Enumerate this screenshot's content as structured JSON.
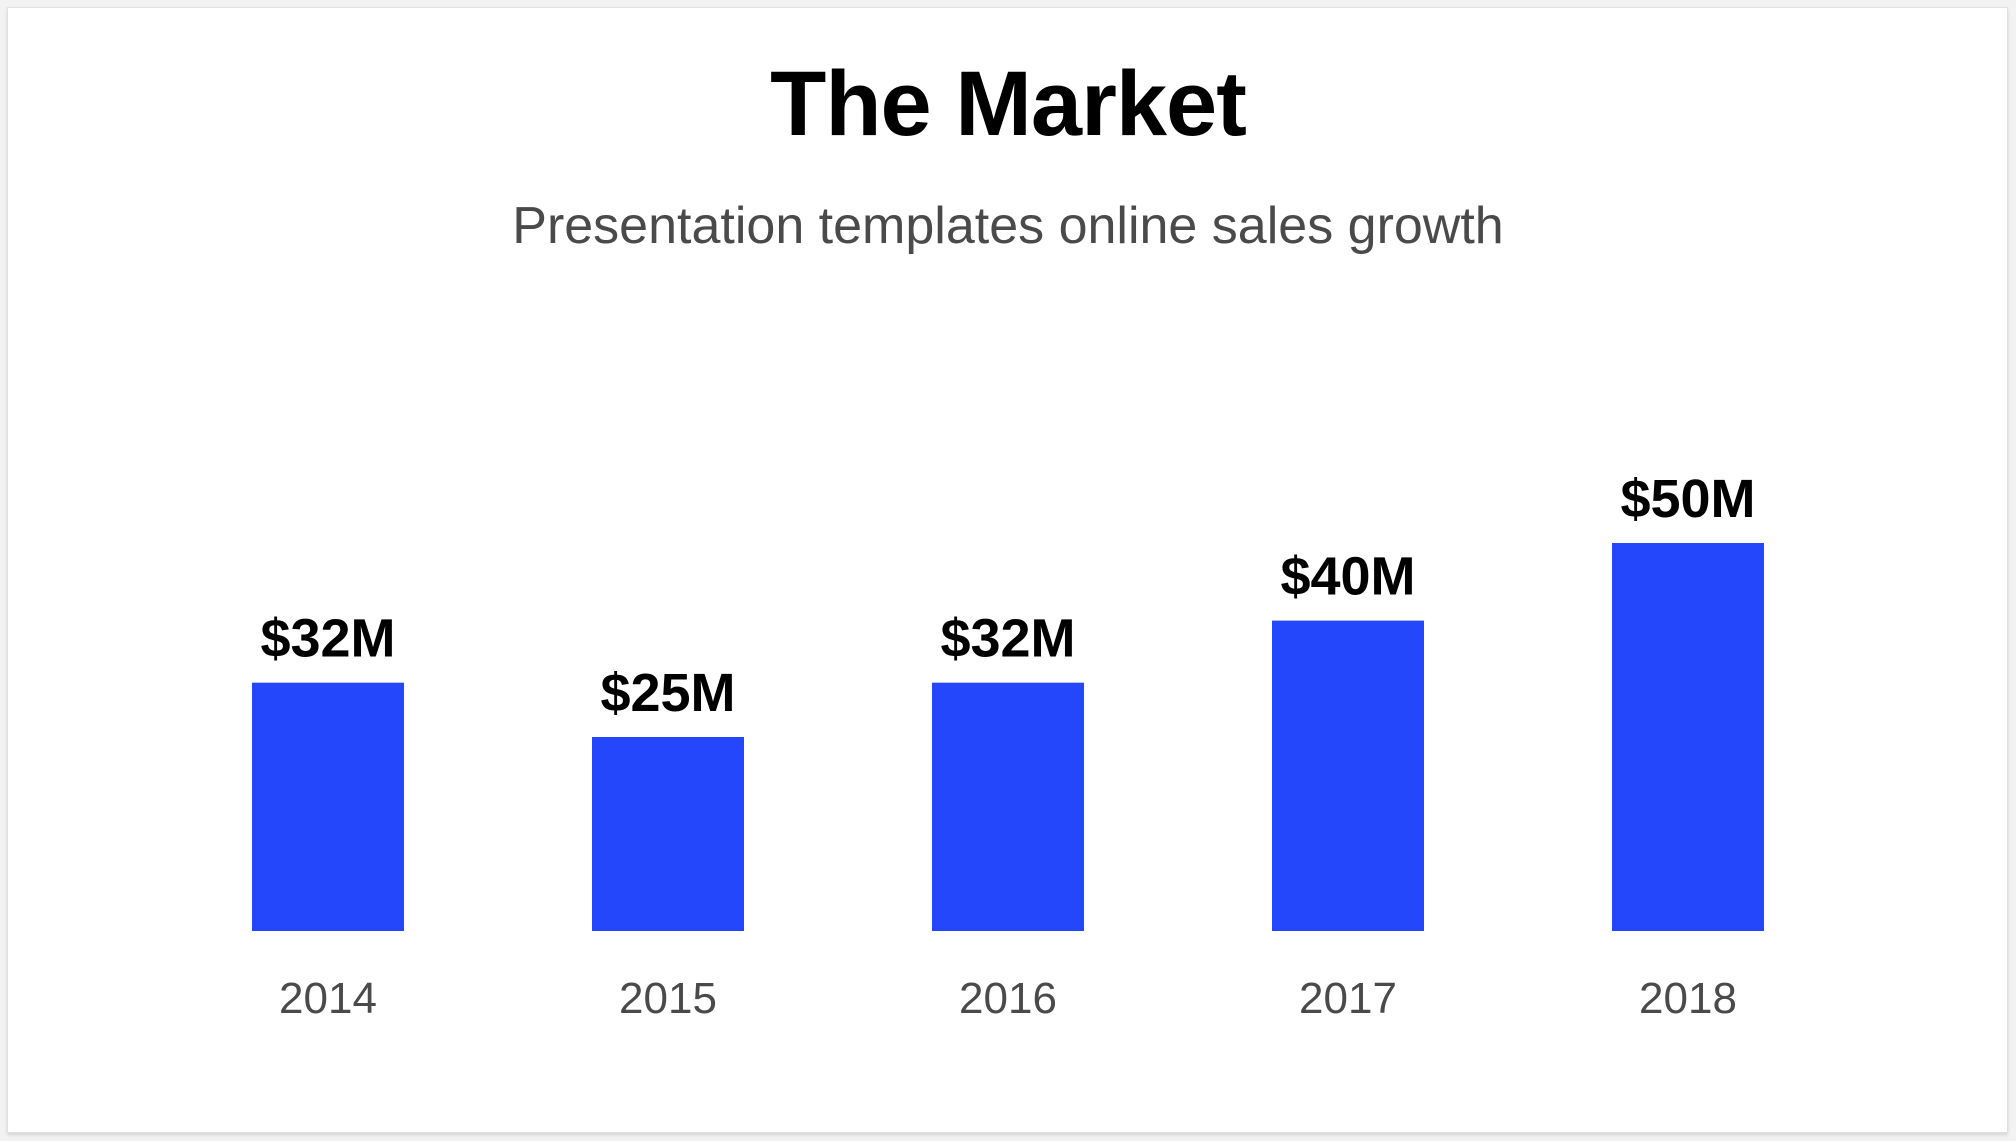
{
  "chart_data": {
    "type": "bar",
    "title": "The Market",
    "subtitle": "Presentation templates online sales growth",
    "categories": [
      "2014",
      "2015",
      "2016",
      "2017",
      "2018"
    ],
    "values": [
      32,
      25,
      32,
      40,
      50
    ],
    "data_labels": [
      "$32M",
      "$25M",
      "$32M",
      "$40M",
      "$50M"
    ],
    "unit": "$M",
    "ylim": [
      0,
      50
    ],
    "grid": false,
    "y_axis_visible": false,
    "bar_color": "#2447fc"
  }
}
